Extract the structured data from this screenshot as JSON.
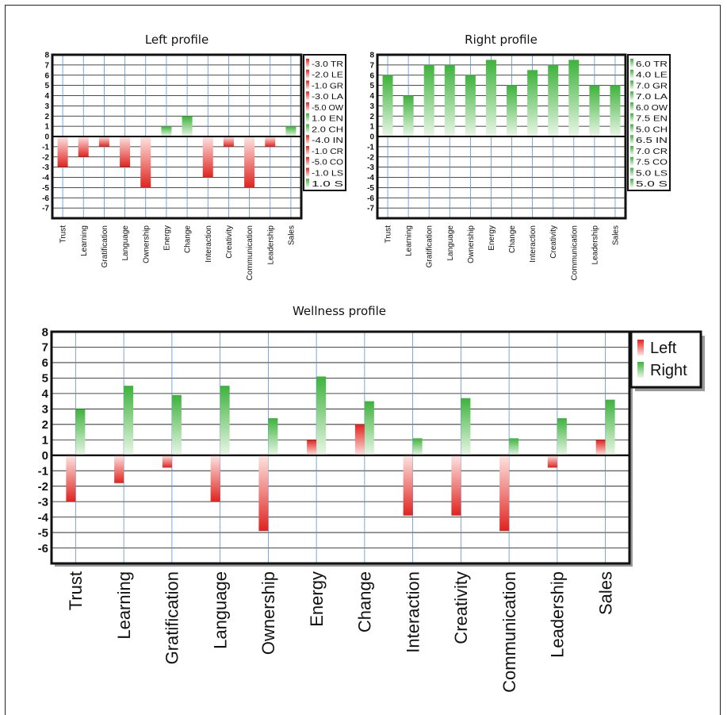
{
  "chart_data": [
    {
      "id": "left",
      "type": "bar",
      "title": "Left profile",
      "categories": [
        "Trust",
        "Learning",
        "Gratification",
        "Language",
        "Ownership",
        "Energy",
        "Change",
        "Interaction",
        "Creativity",
        "Communication",
        "Leadership",
        "Sales"
      ],
      "series": [
        {
          "values": [
            -3,
            -2,
            -1,
            -3,
            -5,
            1,
            2,
            -4,
            -1,
            -5,
            -1,
            1
          ]
        }
      ],
      "ylim": [
        -8,
        8
      ],
      "yticks": [
        8,
        7,
        6,
        5,
        4,
        3,
        2,
        1,
        0,
        -1,
        -2,
        -3,
        -4,
        -5,
        -6,
        -7
      ],
      "legend": [
        "-3.0 TR",
        "-2.0 LE",
        "-1.0 GR",
        "-3.0 LA",
        "-5.0 OW",
        "1.0 EN",
        "2.0 CH",
        "-4.0 IN",
        "-1.0 CR",
        "-5.0 CO",
        "-1.0 LS",
        "1.0 S"
      ],
      "legend_position": "right",
      "grid": true
    },
    {
      "id": "right",
      "type": "bar",
      "title": "Right profile",
      "categories": [
        "Trust",
        "Learning",
        "Gratification",
        "Language",
        "Ownership",
        "Energy",
        "Change",
        "Interaction",
        "Creativity",
        "Communication",
        "Leadership",
        "Sales"
      ],
      "series": [
        {
          "values": [
            6,
            4,
            7,
            7,
            6,
            7.5,
            5,
            6.5,
            7,
            7.5,
            5,
            5
          ]
        }
      ],
      "ylim": [
        -8,
        8
      ],
      "yticks": [
        8,
        7,
        6,
        5,
        4,
        3,
        2,
        1,
        0,
        -1,
        -2,
        -3,
        -4,
        -5,
        -6,
        -7
      ],
      "legend": [
        "6.0 TR",
        "4.0 LE",
        "7.0 GR",
        "7.0 LA",
        "6.0 OW",
        "7.5 EN",
        "5.0 CH",
        "6.5 IN",
        "7.0 CR",
        "7.5 CO",
        "5.0 LS",
        "5.0 S"
      ],
      "legend_position": "right",
      "grid": true
    },
    {
      "id": "wellness",
      "type": "bar",
      "title": "Wellness profile",
      "categories": [
        "Trust",
        "Learning",
        "Gratification",
        "Language",
        "Ownership",
        "Energy",
        "Change",
        "Interaction",
        "Creativity",
        "Communication",
        "Leadership",
        "Sales"
      ],
      "series": [
        {
          "name": "Left",
          "values": [
            -3,
            -1.8,
            -0.8,
            -3,
            -4.9,
            1,
            2,
            -3.9,
            -3.9,
            -4.9,
            -0.8,
            1
          ]
        },
        {
          "name": "Right",
          "values": [
            3,
            4.5,
            3.9,
            4.5,
            2.4,
            5.1,
            3.5,
            1.1,
            3.7,
            1.1,
            2.4,
            3.6
          ]
        }
      ],
      "ylim": [
        -7,
        8
      ],
      "yticks": [
        8,
        7,
        6,
        5,
        4,
        3,
        2,
        1,
        0,
        -1,
        -2,
        -3,
        -4,
        -5,
        -6
      ],
      "legend_position": "top-right",
      "grid": true
    }
  ],
  "colors": {
    "negative_dark": "#e0231e",
    "negative_light": "#fde4e2",
    "positive_dark": "#3db23b",
    "positive_light": "#e8f6e6",
    "grid_vertical": "#5a8fcf",
    "grid_horizontal": "#111111"
  }
}
